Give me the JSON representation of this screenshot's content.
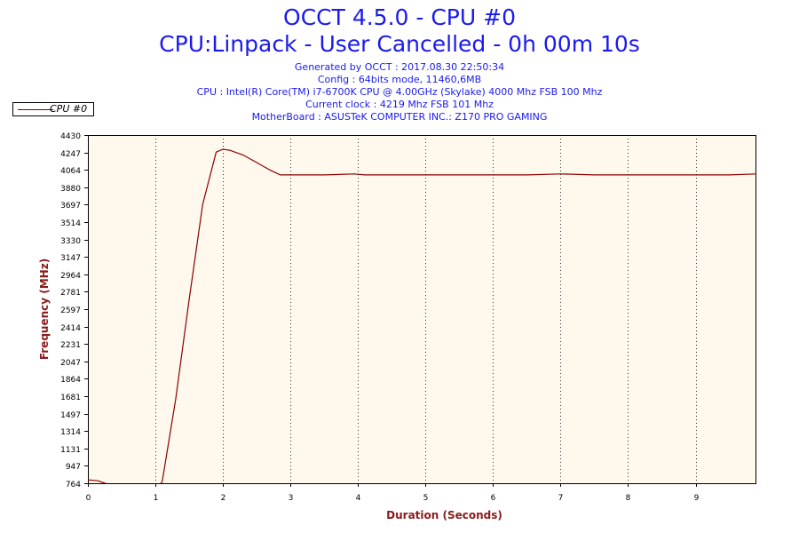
{
  "header": {
    "title": "OCCT 4.5.0 - CPU #0",
    "subtitle": "CPU:Linpack - User Cancelled - 0h 00m 10s",
    "lines": [
      "Generated by OCCT : 2017.08.30 22:50:34",
      "Config : 64bits mode, 11460,6MB",
      "CPU : Intel(R) Core(TM) i7-6700K CPU @ 4.00GHz (Skylake) 4000 Mhz FSB 100 Mhz",
      "Current clock : 4219 Mhz FSB 101 Mhz",
      "MotherBoard : ASUSTeK COMPUTER INC.: Z170 PRO GAMING"
    ]
  },
  "legend": {
    "label": "CPU #0"
  },
  "colors": {
    "title": "#1a1aef",
    "axis_label": "#8b1a1a",
    "series": "#8b0000",
    "plot_background": "#fff8ec"
  },
  "chart_data": {
    "type": "line",
    "xlabel": "Duration (Seconds)",
    "ylabel": "Frequency (MHz)",
    "xlim": [
      0,
      9.9
    ],
    "ylim": [
      764,
      4430
    ],
    "x_ticks": [
      0,
      1,
      2,
      3,
      4,
      5,
      6,
      7,
      8,
      9
    ],
    "y_ticks": [
      764,
      947,
      1131,
      1314,
      1497,
      1681,
      1864,
      2047,
      2231,
      2414,
      2597,
      2781,
      2964,
      3147,
      3330,
      3514,
      3697,
      3880,
      4064,
      4247,
      4430
    ],
    "grid": {
      "vertical": true,
      "horizontal": false
    },
    "legend_position": "top-left",
    "series": [
      {
        "name": "CPU #0",
        "x": [
          0,
          0.15,
          0.25,
          0.5,
          0.8,
          1.0,
          1.1,
          1.3,
          1.5,
          1.7,
          1.9,
          2.0,
          2.1,
          2.3,
          2.5,
          2.7,
          2.85,
          3.0,
          3.5,
          3.95,
          4.1,
          4.5,
          5.0,
          5.5,
          6.0,
          6.5,
          7.0,
          7.5,
          8.0,
          8.5,
          9.0,
          9.5,
          9.9
        ],
        "y": [
          800,
          790,
          764,
          720,
          700,
          690,
          780,
          1650,
          2700,
          3700,
          4250,
          4280,
          4270,
          4220,
          4140,
          4060,
          4010,
          4010,
          4010,
          4020,
          4010,
          4010,
          4010,
          4010,
          4010,
          4010,
          4020,
          4010,
          4010,
          4010,
          4010,
          4010,
          4020
        ]
      }
    ]
  }
}
